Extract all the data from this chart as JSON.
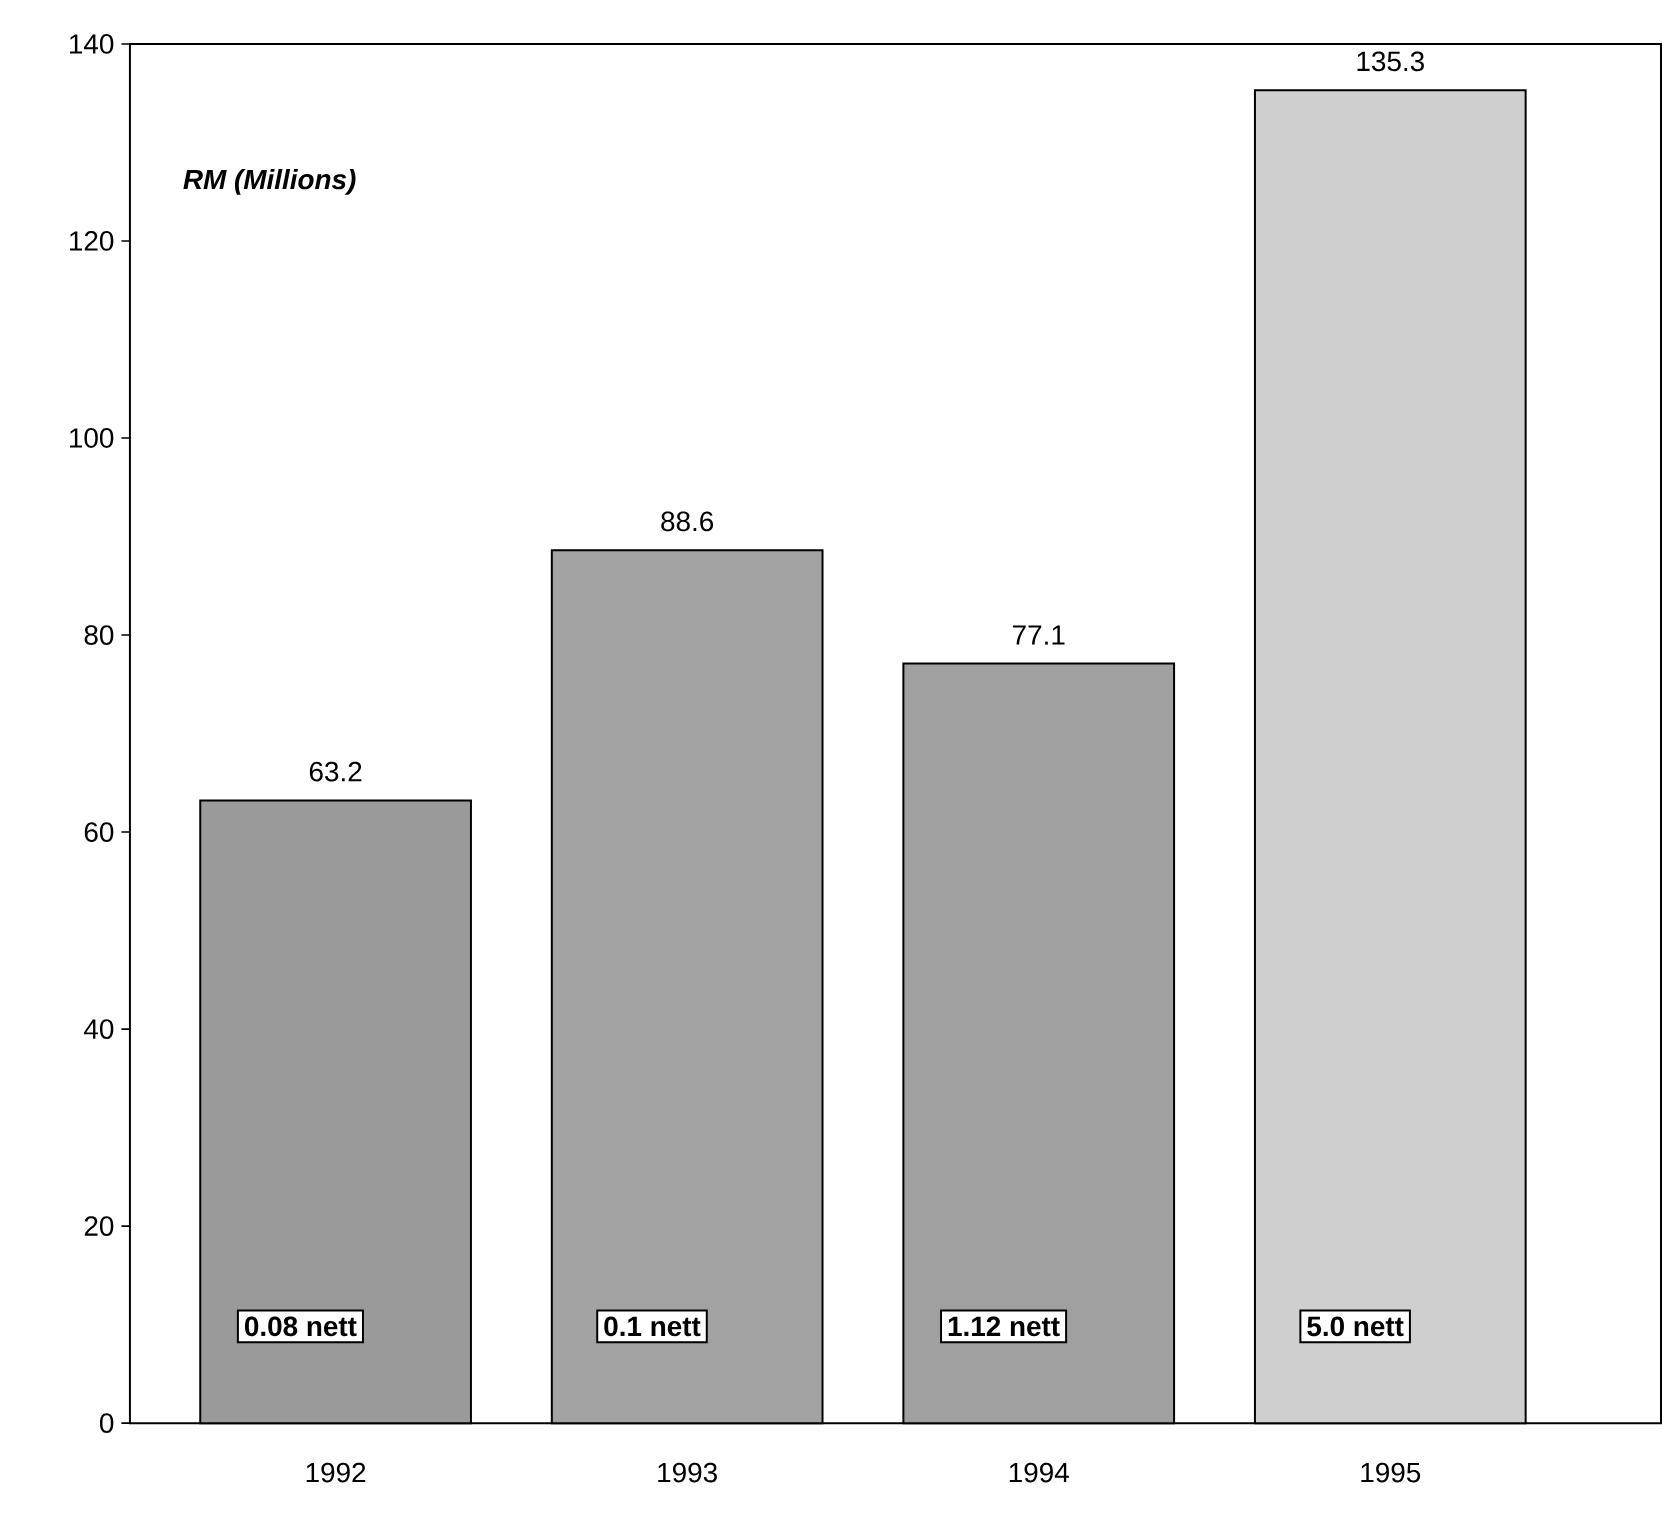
{
  "chart_data": {
    "type": "bar",
    "ylabel": "RM (Millions)",
    "categories": [
      "1992",
      "1993",
      "1994",
      "1995"
    ],
    "colors": [
      "#9a9a9a",
      "#a3a3a3",
      "#a0a0a0",
      "#cfcfcf"
    ],
    "values": [
      63.2,
      88.6,
      77.1,
      135.3
    ],
    "data_labels": true,
    "annotations": [
      "0.08 nett",
      "0.1  nett",
      "1.12 nett",
      "5.0  nett"
    ],
    "ylim": [
      0,
      140
    ],
    "yticks": [
      0,
      20,
      40,
      60,
      80,
      100,
      120,
      140
    ],
    "grid": false
  }
}
